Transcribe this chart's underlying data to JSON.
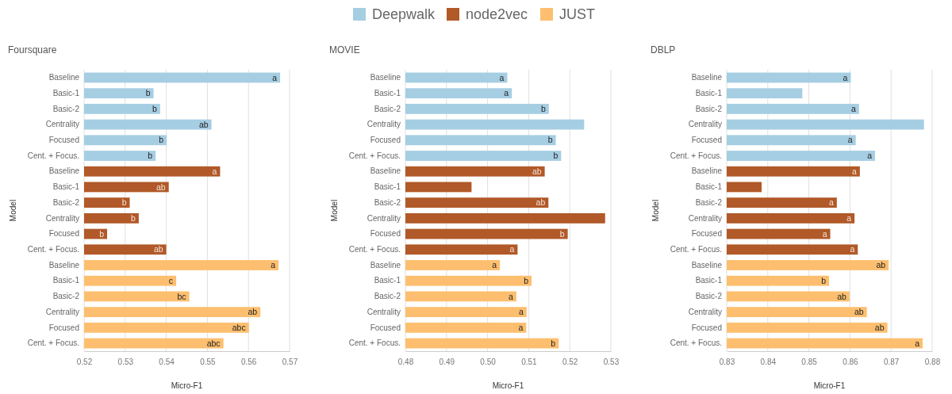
{
  "chart_data": [
    {
      "type": "bar",
      "orientation": "horizontal",
      "title": "Foursquare",
      "xlabel": "Micro-F1",
      "ylabel": "Model",
      "legend": "top",
      "grid": "x",
      "categories": [
        "Baseline",
        "Basic-1",
        "Basic-2",
        "Centrality",
        "Focused",
        "Cent. + Focus.",
        "Baseline",
        "Basic-1",
        "Basic-2",
        "Centrality",
        "Focused",
        "Cent. + Focus.",
        "Baseline",
        "Basic-1",
        "Basic-2",
        "Centrality",
        "Focused",
        "Cent. + Focus."
      ],
      "xlim": [
        0.52,
        0.57
      ],
      "xticks": [
        0.52,
        0.53,
        0.54,
        0.55,
        0.56,
        0.57
      ],
      "series": [
        {
          "name": "Deepwalk",
          "color": "#a6cee3",
          "values": [
            0.5677,
            0.5369,
            0.5385,
            0.551,
            0.5401,
            0.5374,
            null,
            null,
            null,
            null,
            null,
            null,
            null,
            null,
            null,
            null,
            null,
            null
          ],
          "value_labels": [
            "a",
            "b",
            "b",
            "ab",
            "b",
            "b",
            null,
            null,
            null,
            null,
            null,
            null,
            null,
            null,
            null,
            null,
            null,
            null
          ]
        },
        {
          "name": "node2vec",
          "color": "#b15928",
          "values": [
            null,
            null,
            null,
            null,
            null,
            null,
            0.5531,
            0.5406,
            0.5311,
            0.5333,
            0.5256,
            0.54,
            null,
            null,
            null,
            null,
            null,
            null
          ],
          "value_labels": [
            null,
            null,
            null,
            null,
            null,
            null,
            "a",
            "ab",
            "b",
            "b",
            "b",
            "ab",
            null,
            null,
            null,
            null,
            null,
            null
          ]
        },
        {
          "name": "JUST",
          "color": "#fdbf6f",
          "values": [
            null,
            null,
            null,
            null,
            null,
            null,
            null,
            null,
            null,
            null,
            null,
            null,
            0.5673,
            0.5424,
            0.5456,
            0.5629,
            0.5601,
            0.5539
          ],
          "value_labels": [
            null,
            null,
            null,
            null,
            null,
            null,
            null,
            null,
            null,
            null,
            null,
            null,
            "a",
            "c",
            "bc",
            "ab",
            "abc",
            "abc"
          ]
        }
      ]
    },
    {
      "type": "bar",
      "orientation": "horizontal",
      "title": "MOVIE",
      "xlabel": "Micro-F1",
      "ylabel": "Model",
      "grid": "x",
      "categories": [
        "Baseline",
        "Basic-1",
        "Basic-2",
        "Centrality",
        "Focused",
        "Cent. + Focus.",
        "Baseline",
        "Basic-1",
        "Basic-2",
        "Centrality",
        "Focused",
        "Cent. + Focus.",
        "Baseline",
        "Basic-1",
        "Basic-2",
        "Centrality",
        "Focused",
        "Cent. + Focus."
      ],
      "xlim": [
        0.48,
        0.53
      ],
      "xticks": [
        {
          "value": 0.48,
          "label": "0.48"
        },
        {
          "value": 0.49,
          "label": "0.49"
        },
        {
          "value": 0.5,
          "label": "0.50"
        },
        {
          "value": 0.51,
          "label": "0.51"
        },
        {
          "value": 0.52,
          "label": "0.52"
        },
        {
          "value": 0.53,
          "label": "0.53"
        }
      ],
      "series": [
        {
          "color": "#a6cee3",
          "values": [
            0.5048,
            0.5059,
            0.5149,
            0.5235,
            0.5166,
            0.5179,
            null,
            null,
            null,
            null,
            null,
            null,
            null,
            null,
            null,
            null,
            null,
            null
          ],
          "value_labels": [
            "a",
            "a",
            "b",
            null,
            "b",
            "b",
            null,
            null,
            null,
            null,
            null,
            null,
            null,
            null,
            null,
            null,
            null,
            null
          ]
        },
        {
          "color": "#b15928",
          "values": [
            null,
            null,
            null,
            null,
            null,
            null,
            0.5139,
            0.4961,
            0.5148,
            0.5286,
            0.5195,
            0.5073,
            null,
            null,
            null,
            null,
            null,
            null
          ],
          "value_labels": [
            null,
            null,
            null,
            null,
            null,
            null,
            "ab",
            null,
            "ab",
            null,
            "b",
            "a",
            null,
            null,
            null,
            null,
            null,
            null
          ]
        },
        {
          "color": "#fdbf6f",
          "values": [
            null,
            null,
            null,
            null,
            null,
            null,
            null,
            null,
            null,
            null,
            null,
            null,
            0.503,
            0.5107,
            0.507,
            0.5095,
            0.5094,
            0.5173
          ],
          "value_labels": [
            null,
            null,
            null,
            null,
            null,
            null,
            null,
            null,
            null,
            null,
            null,
            null,
            "a",
            "b",
            "a",
            "a",
            "a",
            "b"
          ]
        }
      ]
    },
    {
      "type": "bar",
      "orientation": "horizontal",
      "title": "DBLP",
      "xlabel": "Micro-F1",
      "ylabel": "Model",
      "grid": "x",
      "categories": [
        "Baseline",
        "Basic-1",
        "Basic-2",
        "Centrality",
        "Focused",
        "Cent. + Focus.",
        "Baseline",
        "Basic-1",
        "Basic-2",
        "Centrality",
        "Focused",
        "Cent. + Focus.",
        "Baseline",
        "Basic-1",
        "Basic-2",
        "Centrality",
        "Focused",
        "Cent. + Focus."
      ],
      "xlim": [
        0.83,
        0.88
      ],
      "xticks": [
        0.83,
        0.84,
        0.85,
        0.86,
        0.87,
        0.88
      ],
      "series": [
        {
          "color": "#a6cee3",
          "values": [
            0.8602,
            0.8484,
            0.8622,
            0.878,
            0.8614,
            0.8661,
            null,
            null,
            null,
            null,
            null,
            null,
            null,
            null,
            null,
            null,
            null,
            null
          ],
          "value_labels": [
            "a",
            null,
            "a",
            null,
            "a",
            "a",
            null,
            null,
            null,
            null,
            null,
            null,
            null,
            null,
            null,
            null,
            null,
            null
          ]
        },
        {
          "color": "#b15928",
          "values": [
            null,
            null,
            null,
            null,
            null,
            null,
            0.8624,
            0.8385,
            0.8568,
            0.8611,
            0.8552,
            0.8619,
            null,
            null,
            null,
            null,
            null,
            null
          ],
          "value_labels": [
            null,
            null,
            null,
            null,
            null,
            null,
            "a",
            null,
            "a",
            "a",
            "a",
            "a",
            null,
            null,
            null,
            null,
            null,
            null
          ]
        },
        {
          "color": "#fdbf6f",
          "values": [
            null,
            null,
            null,
            null,
            null,
            null,
            null,
            null,
            null,
            null,
            null,
            null,
            0.8694,
            0.8549,
            0.8599,
            0.8641,
            0.8691,
            0.8777
          ],
          "value_labels": [
            null,
            null,
            null,
            null,
            null,
            null,
            null,
            null,
            null,
            null,
            null,
            null,
            "ab",
            "b",
            "ab",
            "ab",
            "ab",
            "a"
          ]
        }
      ]
    }
  ]
}
